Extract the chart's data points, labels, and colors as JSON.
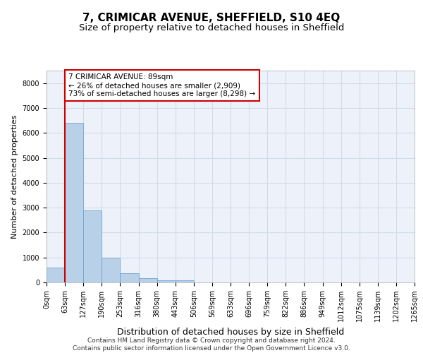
{
  "title1": "7, CRIMICAR AVENUE, SHEFFIELD, S10 4EQ",
  "title2": "Size of property relative to detached houses in Sheffield",
  "xlabel": "Distribution of detached houses by size in Sheffield",
  "ylabel": "Number of detached properties",
  "bar_values": [
    600,
    6400,
    2900,
    1000,
    370,
    170,
    90,
    80,
    0,
    0,
    0,
    0,
    0,
    0,
    0,
    0,
    0,
    0,
    0,
    0
  ],
  "bar_labels": [
    "0sqm",
    "63sqm",
    "127sqm",
    "190sqm",
    "253sqm",
    "316sqm",
    "380sqm",
    "443sqm",
    "506sqm",
    "569sqm",
    "633sqm",
    "696sqm",
    "759sqm",
    "822sqm",
    "886sqm",
    "949sqm",
    "1012sqm",
    "1075sqm",
    "1139sqm",
    "1202sqm",
    "1265sqm"
  ],
  "bar_color": "#b8d0e8",
  "bar_edge_color": "#6699cc",
  "grid_color": "#d0dcea",
  "background_color": "#edf2fa",
  "vline_color": "#cc0000",
  "annotation_text": "7 CRIMICAR AVENUE: 89sqm\n← 26% of detached houses are smaller (2,909)\n73% of semi-detached houses are larger (8,298) →",
  "annotation_box_color": "#ffffff",
  "annotation_box_edge": "#cc0000",
  "ylim": [
    0,
    8500
  ],
  "yticks": [
    0,
    1000,
    2000,
    3000,
    4000,
    5000,
    6000,
    7000,
    8000
  ],
  "footer": "Contains HM Land Registry data © Crown copyright and database right 2024.\nContains public sector information licensed under the Open Government Licence v3.0.",
  "title_fontsize": 11,
  "subtitle_fontsize": 9.5,
  "tick_fontsize": 7,
  "ylabel_fontsize": 8,
  "xlabel_fontsize": 9,
  "footer_fontsize": 6.5,
  "annot_fontsize": 7.5
}
